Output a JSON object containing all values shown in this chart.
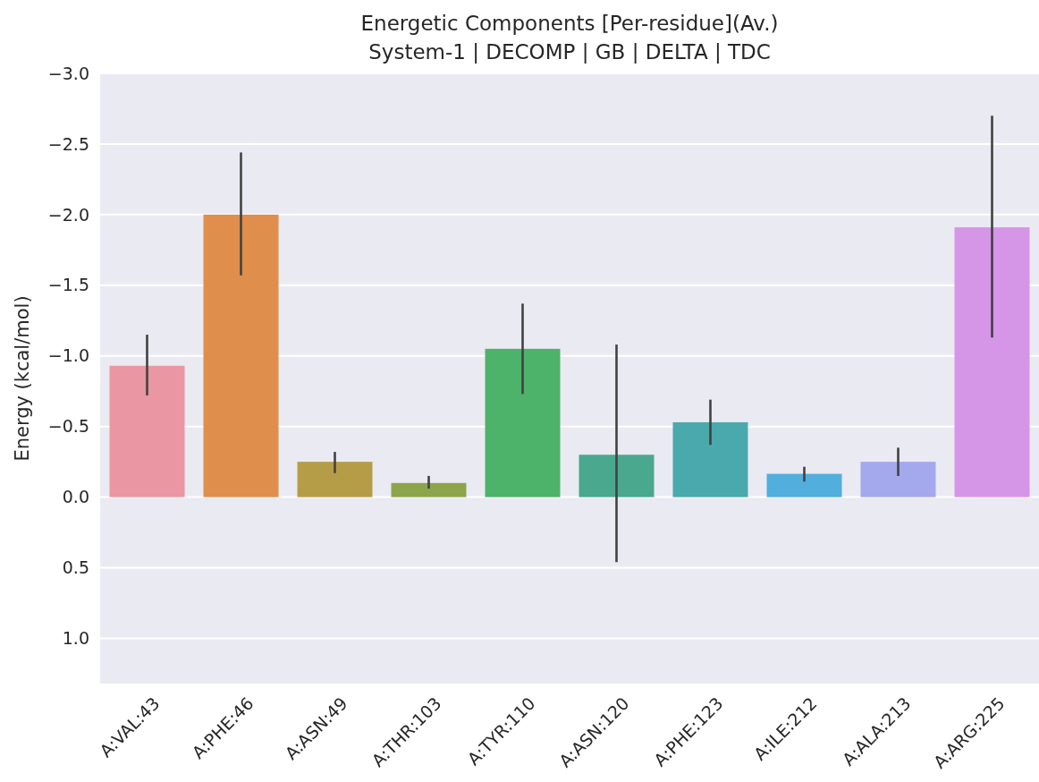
{
  "chart_data": {
    "type": "bar",
    "title": "Energetic Components [Per-residue](Av.)",
    "subtitle": "System-1 | DECOMP | GB | DELTA | TDC",
    "ylabel": "Energy (kcal/mol)",
    "categories": [
      "A:VAL:43",
      "A:PHE:46",
      "A:ASN:49",
      "A:THR:103",
      "A:TYR:110",
      "A:ASN:120",
      "A:PHE:123",
      "A:ILE:212",
      "A:ALA:213",
      "A:ARG:225"
    ],
    "values": [
      -0.93,
      -2.0,
      -0.25,
      -0.1,
      -1.05,
      -0.3,
      -0.53,
      -0.165,
      -0.25,
      -1.91
    ],
    "colors": [
      "#ea96a3",
      "#df8e4b",
      "#b59d48",
      "#8da54a",
      "#4db36b",
      "#4aa88f",
      "#4aa9ac",
      "#52aedc",
      "#a4a8ec",
      "#d596e8"
    ],
    "errors": [
      [
        -1.15,
        -0.72
      ],
      [
        -2.44,
        -1.57
      ],
      [
        -0.32,
        -0.17
      ],
      [
        -0.15,
        -0.06
      ],
      [
        -1.37,
        -0.73
      ],
      [
        -1.08,
        0.46
      ],
      [
        -0.69,
        -0.37
      ],
      [
        -0.215,
        -0.11
      ],
      [
        -0.35,
        -0.15
      ],
      [
        -2.7,
        -1.13
      ]
    ],
    "ylim": [
      1.32,
      -3.0
    ],
    "yticks": [
      {
        "value": -3.0,
        "label": "−3.0"
      },
      {
        "value": -2.5,
        "label": "−2.5"
      },
      {
        "value": -2.0,
        "label": "−2.0"
      },
      {
        "value": -1.5,
        "label": "−1.5"
      },
      {
        "value": -1.0,
        "label": "−1.0"
      },
      {
        "value": -0.5,
        "label": "−0.5"
      },
      {
        "value": 0,
        "label": "0.0"
      },
      {
        "value": 0.5,
        "label": "0.5"
      },
      {
        "value": 1.0,
        "label": "1.0"
      }
    ],
    "grid": "y"
  }
}
